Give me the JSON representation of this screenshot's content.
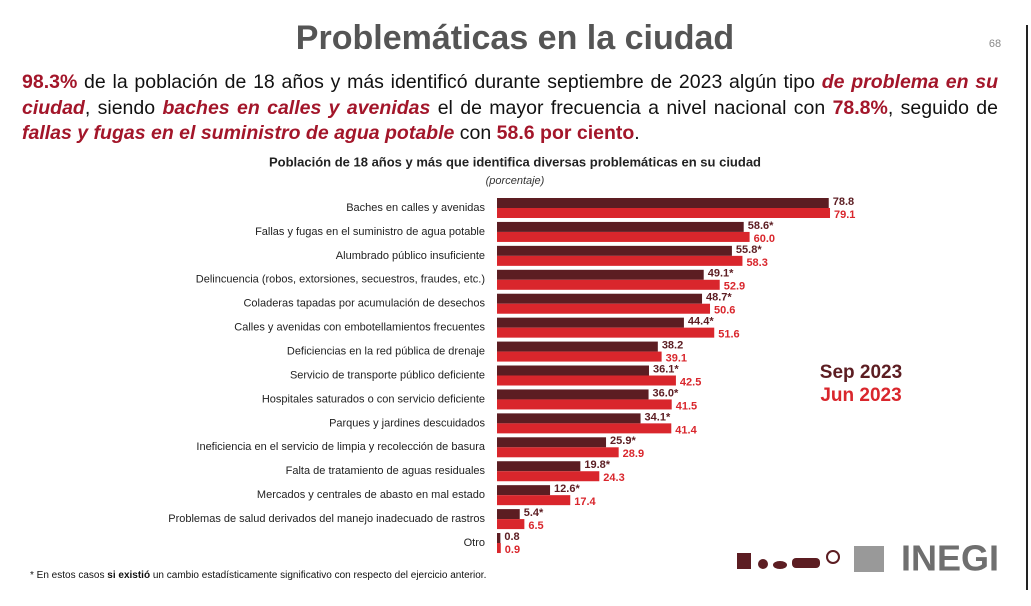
{
  "header": {
    "title": "Problemáticas en la ciudad",
    "page_number": "68"
  },
  "paragraph": [
    "98.3%",
    " de la población de 18 años y más identificó durante septiembre de 2023 algún tipo ",
    "de problema en su ciudad",
    ", siendo ",
    "baches en calles y avenidas",
    " el de mayor frecuencia a nivel nacional con ",
    "78.8%",
    ", seguido de ",
    "fallas y fugas en el suministro de agua potable",
    " con ",
    "58.6 por ciento",
    "."
  ],
  "chart_data": {
    "type": "hbar",
    "title": "Población de 18 años y más que identifica diversas problemáticas en su ciudad",
    "subtitle": "(porcentaje)",
    "categories": [
      "Baches en calles y avenidas",
      "Fallas y fugas en el suministro de agua potable",
      "Alumbrado público insuficiente",
      "Delincuencia (robos, extorsiones, secuestros, fraudes, etc.)",
      "Coladeras tapadas por acumulación de desechos",
      "Calles y avenidas con embotellamientos frecuentes",
      "Deficiencias en la red pública de drenaje",
      "Servicio de transporte público deficiente",
      "Hospitales saturados o con servicio deficiente",
      "Parques y jardines descuidados",
      "Ineficiencia en el servicio de limpia y recolección de basura",
      "Falta de tratamiento de aguas residuales",
      "Mercados y centrales de abasto en mal estado",
      "Problemas de salud derivados del manejo inadecuado de rastros",
      "Otro"
    ],
    "series": [
      {
        "name": "Sep 2023",
        "color": "#5c1d22",
        "values": [
          78.8,
          58.6,
          55.8,
          49.1,
          48.7,
          44.4,
          38.2,
          36.1,
          36.0,
          34.1,
          25.9,
          19.8,
          12.6,
          5.4,
          0.8
        ],
        "value_labels": [
          "78.8",
          "58.6*",
          "55.8*",
          "49.1*",
          "48.7*",
          "44.4*",
          "38.2",
          "36.1*",
          "36.0*",
          "34.1*",
          "25.9*",
          "19.8*",
          "12.6*",
          "5.4*",
          "0.8"
        ]
      },
      {
        "name": "Jun 2023",
        "color": "#d9262c",
        "values": [
          79.1,
          60.0,
          58.3,
          52.9,
          50.6,
          51.6,
          39.1,
          42.5,
          41.5,
          41.4,
          28.9,
          24.3,
          17.4,
          6.5,
          0.9
        ],
        "value_labels": [
          "79.1",
          "60.0",
          "58.3",
          "52.9",
          "50.6",
          "51.6",
          "39.1",
          "42.5",
          "41.5",
          "41.4",
          "28.9",
          "24.3",
          "17.4",
          "6.5",
          "0.9"
        ]
      }
    ]
  },
  "footnote": [
    "* En estos casos ",
    "si existió",
    " un cambio estadísticamente significativo con respecto del ejercicio anterior."
  ],
  "logo": "INEGI"
}
